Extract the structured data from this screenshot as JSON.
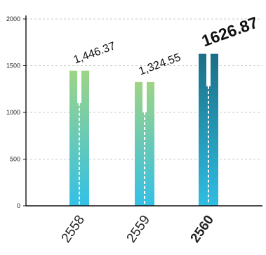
{
  "chart_data": {
    "type": "bar",
    "categories": [
      "2558",
      "2559",
      "2560"
    ],
    "values": [
      1446.37,
      1324.55,
      1626.87
    ],
    "value_labels": [
      "1,446.37",
      "1,324.55",
      "1626.87"
    ],
    "inner_marker_values": [
      1100,
      1000,
      1280
    ],
    "highlight_index": 2,
    "ylim": [
      0,
      2000
    ],
    "y_ticks": [
      {
        "value": 0,
        "label": "0"
      },
      {
        "value": 500,
        "label": "500"
      },
      {
        "value": 1000,
        "label": "1000"
      },
      {
        "value": 1500,
        "label": "1500"
      },
      {
        "value": 2000,
        "label": "2000"
      }
    ],
    "grid": true,
    "colors": {
      "bar_top": "#9ed486",
      "bar_bottom": "#33c0e6",
      "highlight_top": "#1b6f86",
      "highlight_bottom": "#2fbde2",
      "grid": "#c8c8c8",
      "axis": "#111111"
    }
  }
}
